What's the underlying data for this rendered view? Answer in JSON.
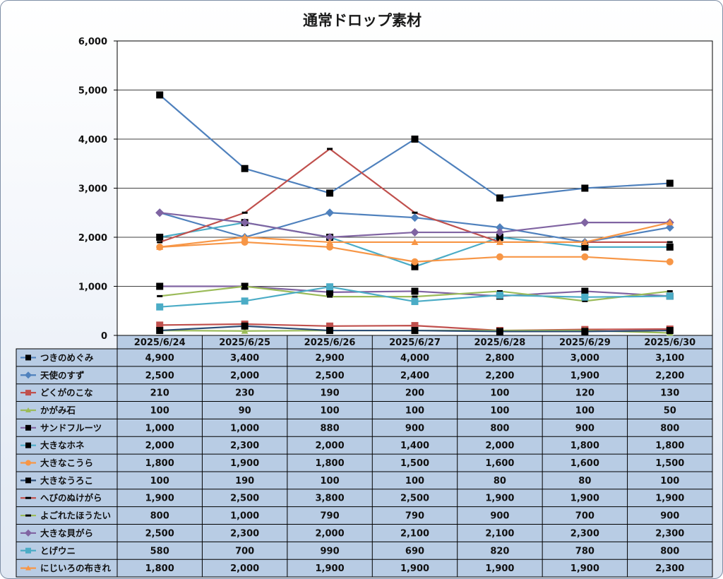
{
  "chart_data": {
    "type": "line",
    "title": "通常ドロップ素材",
    "categories": [
      "2025/6/24",
      "2025/6/25",
      "2025/6/26",
      "2025/6/27",
      "2025/6/28",
      "2025/6/29",
      "2025/6/30"
    ],
    "ylim": [
      0,
      6000
    ],
    "y_ticks": [
      "0",
      "1,000",
      "2,000",
      "3,000",
      "4,000",
      "5,000",
      "6,000"
    ],
    "grid": true,
    "legend": "data-table",
    "series": [
      {
        "name": "つきのめぐみ",
        "color": "#4f81bd",
        "marker": "square",
        "marker_color": "#000000",
        "values": [
          4900,
          3400,
          2900,
          4000,
          2800,
          3000,
          3100
        ],
        "labels": [
          "4,900",
          "3,400",
          "2,900",
          "4,000",
          "2,800",
          "3,000",
          "3,100"
        ]
      },
      {
        "name": "天使のすず",
        "color": "#4f81bd",
        "marker": "diamond",
        "marker_color": "#4f81bd",
        "values": [
          2500,
          2000,
          2500,
          2400,
          2200,
          1900,
          2200
        ],
        "labels": [
          "2,500",
          "2,000",
          "2,500",
          "2,400",
          "2,200",
          "1,900",
          "2,200"
        ]
      },
      {
        "name": "どくがのこな",
        "color": "#c0504d",
        "marker": "square",
        "marker_color": "#c0504d",
        "values": [
          210,
          230,
          190,
          200,
          100,
          120,
          130
        ],
        "labels": [
          "210",
          "230",
          "190",
          "200",
          "100",
          "120",
          "130"
        ]
      },
      {
        "name": "かがみ石",
        "color": "#9bbb59",
        "marker": "triangle",
        "marker_color": "#9bbb59",
        "values": [
          100,
          90,
          100,
          100,
          100,
          100,
          50
        ],
        "labels": [
          "100",
          "90",
          "100",
          "100",
          "100",
          "100",
          "50"
        ]
      },
      {
        "name": "サンドフルーツ",
        "color": "#8064a2",
        "marker": "square",
        "marker_color": "#000000",
        "values": [
          1000,
          1000,
          880,
          900,
          800,
          900,
          800
        ],
        "labels": [
          "1,000",
          "1,000",
          "880",
          "900",
          "800",
          "900",
          "800"
        ]
      },
      {
        "name": "大きなホネ",
        "color": "#4bacc6",
        "marker": "square",
        "marker_color": "#000000",
        "values": [
          2000,
          2300,
          2000,
          1400,
          2000,
          1800,
          1800
        ],
        "labels": [
          "2,000",
          "2,300",
          "2,000",
          "1,400",
          "2,000",
          "1,800",
          "1,800"
        ]
      },
      {
        "name": "大きなこうら",
        "color": "#f79646",
        "marker": "circle",
        "marker_color": "#f79646",
        "values": [
          1800,
          1900,
          1800,
          1500,
          1600,
          1600,
          1500
        ],
        "labels": [
          "1,800",
          "1,900",
          "1,800",
          "1,500",
          "1,600",
          "1,600",
          "1,500"
        ]
      },
      {
        "name": "大きなうろこ",
        "color": "#2c4d75",
        "marker": "square",
        "marker_color": "#000000",
        "values": [
          100,
          190,
          100,
          100,
          80,
          80,
          100
        ],
        "labels": [
          "100",
          "190",
          "100",
          "100",
          "80",
          "80",
          "100"
        ]
      },
      {
        "name": "へびのぬけがら",
        "color": "#c0504d",
        "marker": "dash",
        "marker_color": "#000000",
        "values": [
          1900,
          2500,
          3800,
          2500,
          1900,
          1900,
          1900
        ],
        "labels": [
          "1,900",
          "2,500",
          "3,800",
          "2,500",
          "1,900",
          "1,900",
          "1,900"
        ]
      },
      {
        "name": "よごれたほうたい",
        "color": "#9bbb59",
        "marker": "dash",
        "marker_color": "#000000",
        "values": [
          800,
          1000,
          790,
          790,
          900,
          700,
          900
        ],
        "labels": [
          "800",
          "1,000",
          "790",
          "790",
          "900",
          "700",
          "900"
        ]
      },
      {
        "name": "大きな貝がら",
        "color": "#8064a2",
        "marker": "diamond",
        "marker_color": "#8064a2",
        "values": [
          2500,
          2300,
          2000,
          2100,
          2100,
          2300,
          2300
        ],
        "labels": [
          "2,500",
          "2,300",
          "2,000",
          "2,100",
          "2,100",
          "2,300",
          "2,300"
        ]
      },
      {
        "name": "とげウニ",
        "color": "#4bacc6",
        "marker": "square",
        "marker_color": "#4bacc6",
        "values": [
          580,
          700,
          990,
          690,
          820,
          780,
          800
        ],
        "labels": [
          "580",
          "700",
          "990",
          "690",
          "820",
          "780",
          "800"
        ]
      },
      {
        "name": "にじいろの布きれ",
        "color": "#f79646",
        "marker": "triangle",
        "marker_color": "#f79646",
        "values": [
          1800,
          2000,
          1900,
          1900,
          1900,
          1900,
          2300
        ],
        "labels": [
          "1,800",
          "2,000",
          "1,900",
          "1,900",
          "1,900",
          "1,900",
          "2,300"
        ]
      }
    ]
  }
}
